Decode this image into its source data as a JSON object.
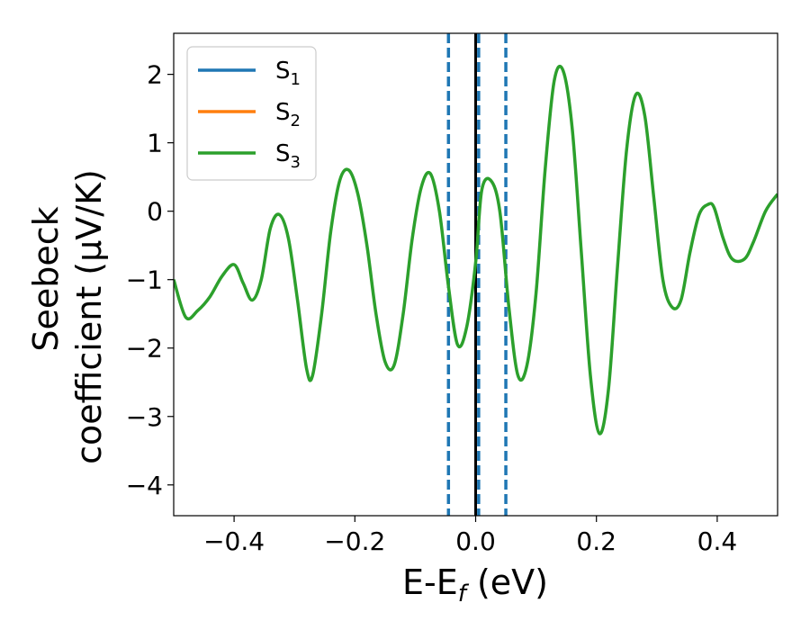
{
  "chart_data": {
    "type": "line",
    "title": "",
    "xlabel": "E-E",
    "xlabel_sub": "f",
    "xlabel_unit": "(eV)",
    "ylabel_line1": "Seebeck",
    "ylabel_line2": "coefficient (μV/K)",
    "xlim": [
      -0.5,
      0.5
    ],
    "ylim": [
      -4.45,
      2.6
    ],
    "xticks": [
      -0.4,
      -0.2,
      0.0,
      0.2,
      0.4
    ],
    "xtick_labels": [
      "−0.4",
      "−0.2",
      "0.0",
      "0.2",
      "0.4"
    ],
    "yticks": [
      -4,
      -3,
      -2,
      -1,
      0,
      1,
      2
    ],
    "ytick_labels": [
      "−4",
      "−3",
      "−2",
      "−1",
      "0",
      "1",
      "2"
    ],
    "grid": false,
    "legend_position": "top-left",
    "series": [
      {
        "name": "S",
        "sub": "1",
        "color": "#1f77b4",
        "x": [],
        "y": []
      },
      {
        "name": "S",
        "sub": "2",
        "color": "#ff7f0e",
        "x": [],
        "y": []
      },
      {
        "name": "S",
        "sub": "3",
        "color": "#2ca02c",
        "x": [
          -0.5,
          -0.48,
          -0.46,
          -0.44,
          -0.42,
          -0.4,
          -0.385,
          -0.37,
          -0.355,
          -0.34,
          -0.325,
          -0.31,
          -0.295,
          -0.28,
          -0.27,
          -0.255,
          -0.24,
          -0.225,
          -0.21,
          -0.195,
          -0.18,
          -0.165,
          -0.15,
          -0.135,
          -0.12,
          -0.105,
          -0.09,
          -0.075,
          -0.06,
          -0.045,
          -0.03,
          -0.015,
          0.0,
          0.01,
          0.025,
          0.04,
          0.055,
          0.07,
          0.085,
          0.1,
          0.115,
          0.13,
          0.145,
          0.16,
          0.175,
          0.19,
          0.205,
          0.22,
          0.235,
          0.25,
          0.265,
          0.28,
          0.295,
          0.31,
          0.325,
          0.34,
          0.355,
          0.37,
          0.385,
          0.395,
          0.41,
          0.425,
          0.445,
          0.46,
          0.48,
          0.5
        ],
        "y": [
          -1.0,
          -1.55,
          -1.45,
          -1.25,
          -0.95,
          -0.78,
          -1.05,
          -1.3,
          -1.0,
          -0.25,
          -0.05,
          -0.4,
          -1.3,
          -2.3,
          -2.4,
          -1.5,
          -0.3,
          0.45,
          0.6,
          0.25,
          -0.5,
          -1.5,
          -2.2,
          -2.25,
          -1.5,
          -0.4,
          0.35,
          0.55,
          0.0,
          -1.1,
          -1.95,
          -1.7,
          -0.75,
          0.3,
          0.45,
          0.0,
          -1.4,
          -2.4,
          -2.25,
          -1.2,
          0.6,
          1.9,
          2.05,
          1.2,
          -0.6,
          -2.4,
          -3.25,
          -2.6,
          -0.8,
          0.9,
          1.7,
          1.4,
          0.2,
          -1.0,
          -1.4,
          -1.3,
          -0.6,
          -0.05,
          0.1,
          0.05,
          -0.4,
          -0.7,
          -0.7,
          -0.45,
          0.0,
          0.25
        ]
      }
    ],
    "reference_lines": [
      {
        "x": 0.0,
        "style": "solid",
        "color": "#000000"
      },
      {
        "x": -0.045,
        "style": "dashed",
        "color": "#1f77b4"
      },
      {
        "x": 0.005,
        "style": "dashed",
        "color": "#1f77b4"
      },
      {
        "x": 0.05,
        "style": "dashed",
        "color": "#1f77b4"
      }
    ]
  }
}
